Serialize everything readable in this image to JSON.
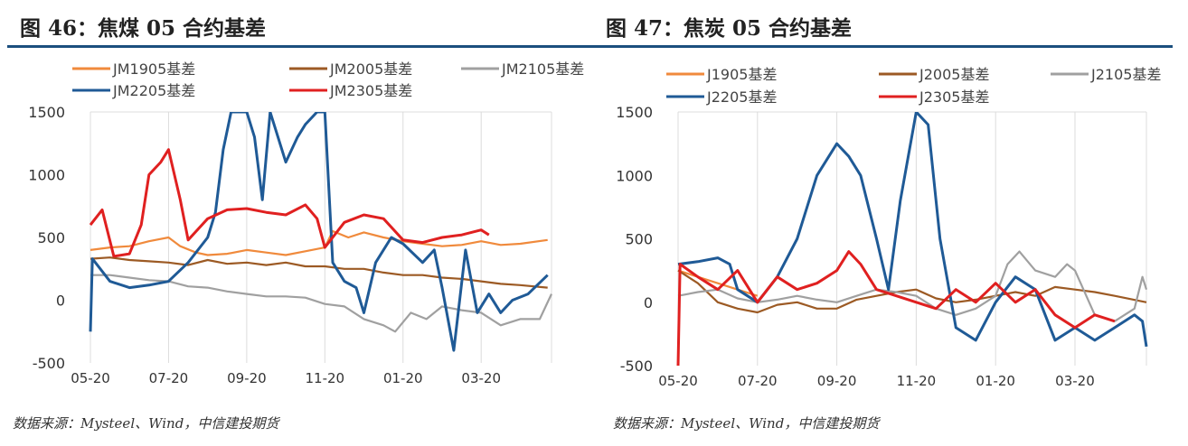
{
  "chart_data": [
    {
      "type": "line",
      "title": "图 46：焦煤 05 合约基差",
      "source": "数据来源：Mysteel、Wind，中信建投期货",
      "ylim": [
        -500,
        1500
      ],
      "yticks": [
        "1500",
        "1000",
        "500",
        "0",
        "-500"
      ],
      "ytick_values": [
        1500,
        1000,
        500,
        0,
        -500
      ],
      "xticks": [
        "05-20",
        "07-20",
        "09-20",
        "11-20",
        "01-20",
        "03-20"
      ],
      "xtick_months": [
        0,
        2,
        4,
        6,
        8,
        10
      ],
      "xlim": [
        0,
        11.8
      ],
      "grid": "vertical",
      "series": [
        {
          "name": "JM1905基差",
          "color": "#f08a3c",
          "points": [
            [
              0,
              400
            ],
            [
              0.5,
              420
            ],
            [
              1,
              430
            ],
            [
              1.5,
              470
            ],
            [
              2,
              500
            ],
            [
              2.3,
              430
            ],
            [
              2.7,
              380
            ],
            [
              3,
              360
            ],
            [
              3.5,
              370
            ],
            [
              4,
              400
            ],
            [
              4.5,
              380
            ],
            [
              5,
              360
            ],
            [
              5.5,
              390
            ],
            [
              6,
              420
            ],
            [
              6.2,
              550
            ],
            [
              6.6,
              500
            ],
            [
              7,
              540
            ],
            [
              7.5,
              500
            ],
            [
              8,
              470
            ],
            [
              8.5,
              450
            ],
            [
              9,
              430
            ],
            [
              9.5,
              440
            ],
            [
              10,
              470
            ],
            [
              10.5,
              440
            ],
            [
              11,
              450
            ],
            [
              11.7,
              480
            ]
          ]
        },
        {
          "name": "JM2005基差",
          "color": "#9c5a24",
          "points": [
            [
              0,
              330
            ],
            [
              0.5,
              340
            ],
            [
              1,
              320
            ],
            [
              1.5,
              310
            ],
            [
              2,
              300
            ],
            [
              2.5,
              280
            ],
            [
              3,
              320
            ],
            [
              3.5,
              290
            ],
            [
              4,
              300
            ],
            [
              4.5,
              280
            ],
            [
              5,
              300
            ],
            [
              5.5,
              270
            ],
            [
              6,
              270
            ],
            [
              6.5,
              250
            ],
            [
              7,
              250
            ],
            [
              7.5,
              220
            ],
            [
              8,
              200
            ],
            [
              8.5,
              200
            ],
            [
              9,
              180
            ],
            [
              9.5,
              170
            ],
            [
              10,
              150
            ],
            [
              10.5,
              130
            ],
            [
              11,
              120
            ],
            [
              11.7,
              100
            ]
          ]
        },
        {
          "name": "JM2105基差",
          "color": "#a0a0a0",
          "points": [
            [
              0,
              200
            ],
            [
              0.5,
              200
            ],
            [
              1,
              180
            ],
            [
              1.5,
              160
            ],
            [
              2,
              150
            ],
            [
              2.5,
              110
            ],
            [
              3,
              100
            ],
            [
              3.5,
              70
            ],
            [
              4,
              50
            ],
            [
              4.5,
              30
            ],
            [
              5,
              30
            ],
            [
              5.5,
              20
            ],
            [
              6,
              -30
            ],
            [
              6.5,
              -50
            ],
            [
              7,
              -150
            ],
            [
              7.5,
              -200
            ],
            [
              7.8,
              -250
            ],
            [
              8.2,
              -100
            ],
            [
              8.6,
              -150
            ],
            [
              9,
              -50
            ],
            [
              9.5,
              -80
            ],
            [
              10,
              -100
            ],
            [
              10.5,
              -200
            ],
            [
              11,
              -150
            ],
            [
              11.5,
              -150
            ],
            [
              11.8,
              50
            ]
          ]
        },
        {
          "name": "JM2205基差",
          "color": "#1f5a96",
          "points": [
            [
              0,
              -250
            ],
            [
              0.05,
              330
            ],
            [
              0.5,
              150
            ],
            [
              1,
              100
            ],
            [
              1.5,
              120
            ],
            [
              2,
              150
            ],
            [
              2.5,
              300
            ],
            [
              3,
              500
            ],
            [
              3.2,
              700
            ],
            [
              3.4,
              1200
            ],
            [
              3.6,
              1500
            ],
            [
              4,
              1500
            ],
            [
              4.2,
              1300
            ],
            [
              4.4,
              800
            ],
            [
              4.6,
              1500
            ],
            [
              5,
              1100
            ],
            [
              5.3,
              1300
            ],
            [
              5.5,
              1400
            ],
            [
              5.8,
              1500
            ],
            [
              6,
              1500
            ],
            [
              6.2,
              300
            ],
            [
              6.5,
              150
            ],
            [
              6.8,
              100
            ],
            [
              7,
              -100
            ],
            [
              7.3,
              300
            ],
            [
              7.7,
              500
            ],
            [
              8,
              450
            ],
            [
              8.5,
              300
            ],
            [
              8.8,
              400
            ],
            [
              9,
              100
            ],
            [
              9.3,
              -400
            ],
            [
              9.6,
              400
            ],
            [
              9.9,
              -100
            ],
            [
              10.2,
              50
            ],
            [
              10.5,
              -100
            ],
            [
              10.8,
              0
            ],
            [
              11.2,
              50
            ],
            [
              11.7,
              200
            ]
          ]
        },
        {
          "name": "JM2305基差",
          "color": "#e02020",
          "points": [
            [
              0,
              600
            ],
            [
              0.3,
              720
            ],
            [
              0.6,
              350
            ],
            [
              1,
              370
            ],
            [
              1.3,
              600
            ],
            [
              1.5,
              1000
            ],
            [
              1.8,
              1100
            ],
            [
              2,
              1200
            ],
            [
              2.3,
              800
            ],
            [
              2.5,
              480
            ],
            [
              3,
              650
            ],
            [
              3.5,
              720
            ],
            [
              4,
              730
            ],
            [
              4.5,
              700
            ],
            [
              5,
              680
            ],
            [
              5.5,
              760
            ],
            [
              5.8,
              650
            ],
            [
              6,
              420
            ],
            [
              6.5,
              620
            ],
            [
              7,
              680
            ],
            [
              7.5,
              650
            ],
            [
              8,
              480
            ],
            [
              8.5,
              460
            ],
            [
              9,
              500
            ],
            [
              9.5,
              520
            ],
            [
              10,
              560
            ],
            [
              10.2,
              520
            ]
          ]
        }
      ]
    },
    {
      "type": "line",
      "title": "图 47：焦炭 05 合约基差",
      "source": "数据来源：Mysteel、Wind，中信建投期货",
      "ylim": [
        -500,
        1500
      ],
      "yticks": [
        "1500",
        "1000",
        "500",
        "0",
        "-500"
      ],
      "ytick_values": [
        1500,
        1000,
        500,
        0,
        -500
      ],
      "xticks": [
        "05-20",
        "07-20",
        "09-20",
        "11-20",
        "01-20",
        "03-20"
      ],
      "xtick_months": [
        0,
        2,
        4,
        6,
        8,
        10
      ],
      "xlim": [
        0,
        11.8
      ],
      "grid": "vertical",
      "series": [
        {
          "name": "J1905基差",
          "color": "#f08a3c",
          "points": [
            [
              0,
              250
            ],
            [
              0.5,
              200
            ],
            [
              1,
              150
            ],
            [
              1.5,
              100
            ],
            [
              2,
              50
            ]
          ]
        },
        {
          "name": "J2005基差",
          "color": "#9c5a24",
          "points": [
            [
              0,
              250
            ],
            [
              0.5,
              150
            ],
            [
              1,
              0
            ],
            [
              1.5,
              -50
            ],
            [
              2,
              -80
            ],
            [
              2.5,
              -20
            ],
            [
              3,
              0
            ],
            [
              3.5,
              -50
            ],
            [
              4,
              -50
            ],
            [
              4.5,
              20
            ],
            [
              5,
              50
            ],
            [
              5.5,
              80
            ],
            [
              6,
              100
            ],
            [
              6.5,
              30
            ],
            [
              7,
              0
            ],
            [
              7.5,
              20
            ],
            [
              8,
              50
            ],
            [
              8.5,
              80
            ],
            [
              9,
              50
            ],
            [
              9.5,
              120
            ],
            [
              10,
              100
            ],
            [
              10.5,
              80
            ],
            [
              11,
              50
            ],
            [
              11.8,
              0
            ]
          ]
        },
        {
          "name": "J2105基差",
          "color": "#a0a0a0",
          "points": [
            [
              0,
              50
            ],
            [
              0.5,
              80
            ],
            [
              1,
              100
            ],
            [
              1.5,
              30
            ],
            [
              2,
              0
            ],
            [
              2.5,
              20
            ],
            [
              3,
              50
            ],
            [
              3.5,
              20
            ],
            [
              4,
              0
            ],
            [
              4.5,
              50
            ],
            [
              5,
              100
            ],
            [
              5.5,
              80
            ],
            [
              6,
              50
            ],
            [
              6.5,
              -50
            ],
            [
              7,
              -100
            ],
            [
              7.5,
              -50
            ],
            [
              8,
              50
            ],
            [
              8.3,
              300
            ],
            [
              8.6,
              400
            ],
            [
              9,
              250
            ],
            [
              9.5,
              200
            ],
            [
              9.8,
              300
            ],
            [
              10,
              250
            ],
            [
              10.5,
              -100
            ],
            [
              11,
              -150
            ],
            [
              11.5,
              -50
            ],
            [
              11.7,
              200
            ],
            [
              11.8,
              100
            ]
          ]
        },
        {
          "name": "J2205基差",
          "color": "#1f5a96",
          "points": [
            [
              0,
              300
            ],
            [
              0.5,
              320
            ],
            [
              1,
              350
            ],
            [
              1.3,
              300
            ],
            [
              1.5,
              100
            ],
            [
              2,
              0
            ],
            [
              2.5,
              200
            ],
            [
              3,
              500
            ],
            [
              3.5,
              1000
            ],
            [
              4,
              1250
            ],
            [
              4.3,
              1150
            ],
            [
              4.6,
              1000
            ],
            [
              5,
              500
            ],
            [
              5.3,
              100
            ],
            [
              5.6,
              800
            ],
            [
              6,
              1500
            ],
            [
              6.3,
              1400
            ],
            [
              6.6,
              500
            ],
            [
              7,
              -200
            ],
            [
              7.5,
              -300
            ],
            [
              8,
              0
            ],
            [
              8.5,
              200
            ],
            [
              9,
              100
            ],
            [
              9.5,
              -300
            ],
            [
              10,
              -200
            ],
            [
              10.5,
              -300
            ],
            [
              11,
              -200
            ],
            [
              11.5,
              -100
            ],
            [
              11.7,
              -150
            ],
            [
              11.8,
              -350
            ]
          ]
        },
        {
          "name": "J2305基差",
          "color": "#e02020",
          "points": [
            [
              0,
              -500
            ],
            [
              0.05,
              300
            ],
            [
              0.5,
              200
            ],
            [
              1,
              100
            ],
            [
              1.5,
              250
            ],
            [
              2,
              0
            ],
            [
              2.5,
              200
            ],
            [
              3,
              100
            ],
            [
              3.5,
              150
            ],
            [
              4,
              250
            ],
            [
              4.3,
              400
            ],
            [
              4.6,
              300
            ],
            [
              5,
              100
            ],
            [
              5.5,
              50
            ],
            [
              6,
              0
            ],
            [
              6.5,
              -50
            ],
            [
              7,
              100
            ],
            [
              7.5,
              0
            ],
            [
              8,
              150
            ],
            [
              8.5,
              0
            ],
            [
              9,
              100
            ],
            [
              9.5,
              -100
            ],
            [
              10,
              -200
            ],
            [
              10.5,
              -100
            ],
            [
              11,
              -150
            ]
          ]
        }
      ]
    }
  ]
}
